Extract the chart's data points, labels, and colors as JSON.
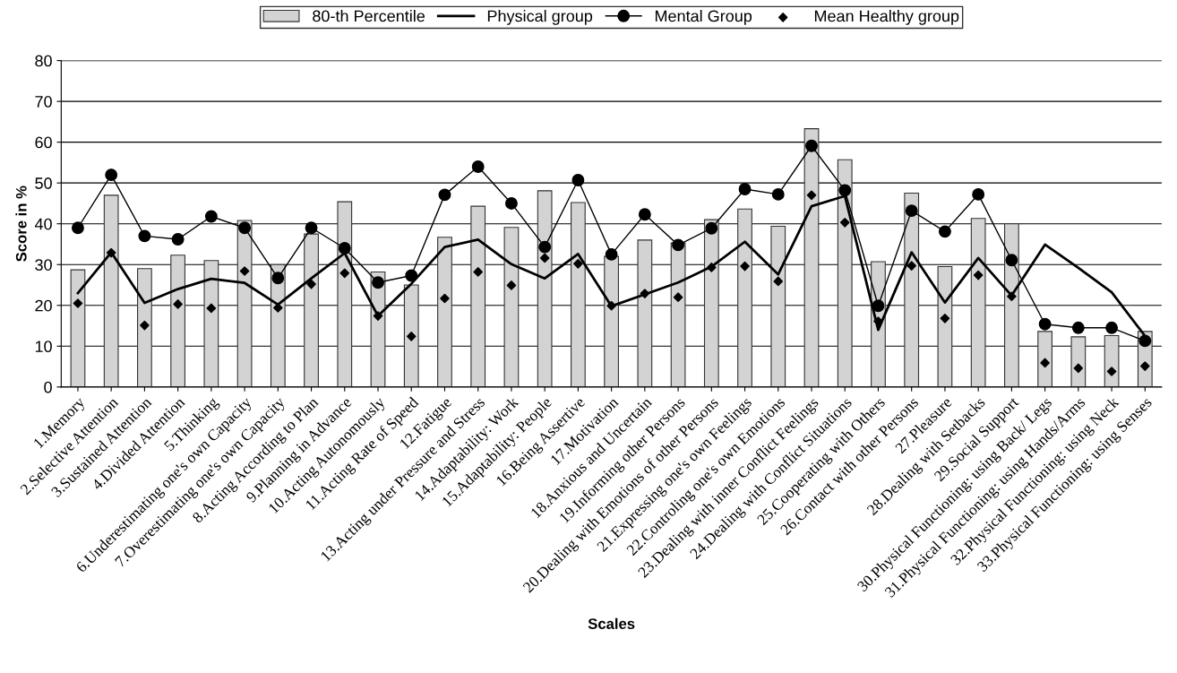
{
  "chart_data": {
    "type": "bar",
    "xlabel": "Scales",
    "ylabel": "Score in %",
    "categories": [
      "1.Memory",
      "2.Selective Attention",
      "3.Sustained Attention",
      "4.Divided Attention",
      "5.Thinking",
      "6.Underestimating one's own Capacity",
      "7.Overestimating one's own Capacity",
      "8.Acting According to Plan",
      "9.Planning in Advance",
      "10.Acting Autonomously",
      "11.Acting Rate of Speed",
      "12.Fatigue",
      "13.Acting under Pressure and Stress",
      "14.Adaptability: Work",
      "15.Adaptability: People",
      "16.Being Assertive",
      "17.Motivation",
      "18.Anxious and Uncertain",
      "19.Informing other Persons",
      "20.Dealing with Emotions of other Persons",
      "21.Expressing one's own Feelings",
      "22.Controling one's own Emotions",
      "23.Dealing with inner Conflict Feelings",
      "24.Dealing with Conflict Situations",
      "25.Cooperating with Others",
      "26.Contact with other Persons",
      "27.Pleasure",
      "28.Dealing with Setbacks",
      "29.Social Support",
      "30.Physical Functioning: using Back/ Legs",
      "31.Physical Functioning: using Hands/Arms",
      "32.Physical Functioning: using Neck",
      "33.Physical Functioning: using Senses"
    ],
    "series": [
      {
        "name": "80-th Percentile",
        "color": "#d3d3d3",
        "values": [
          28.7,
          47,
          29,
          32.3,
          31,
          40.8,
          30,
          37.5,
          45.4,
          28.2,
          25,
          36.7,
          44.3,
          39.1,
          48.1,
          45.2,
          32,
          36,
          35.3,
          41,
          43.6,
          39.4,
          63.3,
          55.7,
          30.7,
          47.5,
          29.5,
          41.3,
          40,
          13.6,
          12.3,
          12.6,
          13.6
        ]
      },
      {
        "name": "Physical group",
        "type": "line",
        "color": "#000000",
        "marker": "none",
        "line_style": "solid",
        "values": [
          23,
          33,
          20.6,
          24,
          26.5,
          25.5,
          20.2,
          26.6,
          32.8,
          17.4,
          25.3,
          34.3,
          36.1,
          30.1,
          26.6,
          32.6,
          19.8,
          22.7,
          25.6,
          29.5,
          35.6,
          27.6,
          44.3,
          46.8,
          14,
          33,
          20.7,
          31.6,
          22.4,
          34.9,
          29.2,
          23.2,
          12.5
        ]
      },
      {
        "name": "Mental Group",
        "type": "line",
        "color": "#000000",
        "marker": "circle",
        "line_style": "solid",
        "values": [
          39,
          52,
          37,
          36.2,
          41.8,
          39,
          26.7,
          39,
          34,
          25.6,
          27.3,
          47.1,
          54,
          45,
          34.3,
          50.7,
          32.5,
          42.3,
          34.8,
          38.9,
          48.5,
          47.2,
          59.1,
          48.2,
          19.9,
          43.2,
          38.1,
          47.2,
          31.1,
          15.4,
          14.5,
          14.5,
          11.3
        ]
      },
      {
        "name": "Mean Healthy group",
        "type": "scatter",
        "color": "#000000",
        "marker": "diamond",
        "values": [
          20.5,
          32.9,
          15.1,
          20.3,
          19.3,
          28.4,
          19.4,
          25.2,
          27.9,
          17.4,
          12.4,
          21.7,
          28.2,
          24.9,
          31.6,
          30.2,
          19.9,
          22.9,
          22,
          29.3,
          29.6,
          25.9,
          47,
          40.3,
          16.1,
          29.7,
          16.8,
          27.4,
          22.2,
          5.9,
          4.6,
          3.8,
          5.1
        ]
      }
    ],
    "ylim": [
      0,
      80
    ],
    "yticks": [
      0,
      10,
      20,
      30,
      40,
      50,
      60,
      70,
      80
    ],
    "grid": "y",
    "legend": "top"
  }
}
